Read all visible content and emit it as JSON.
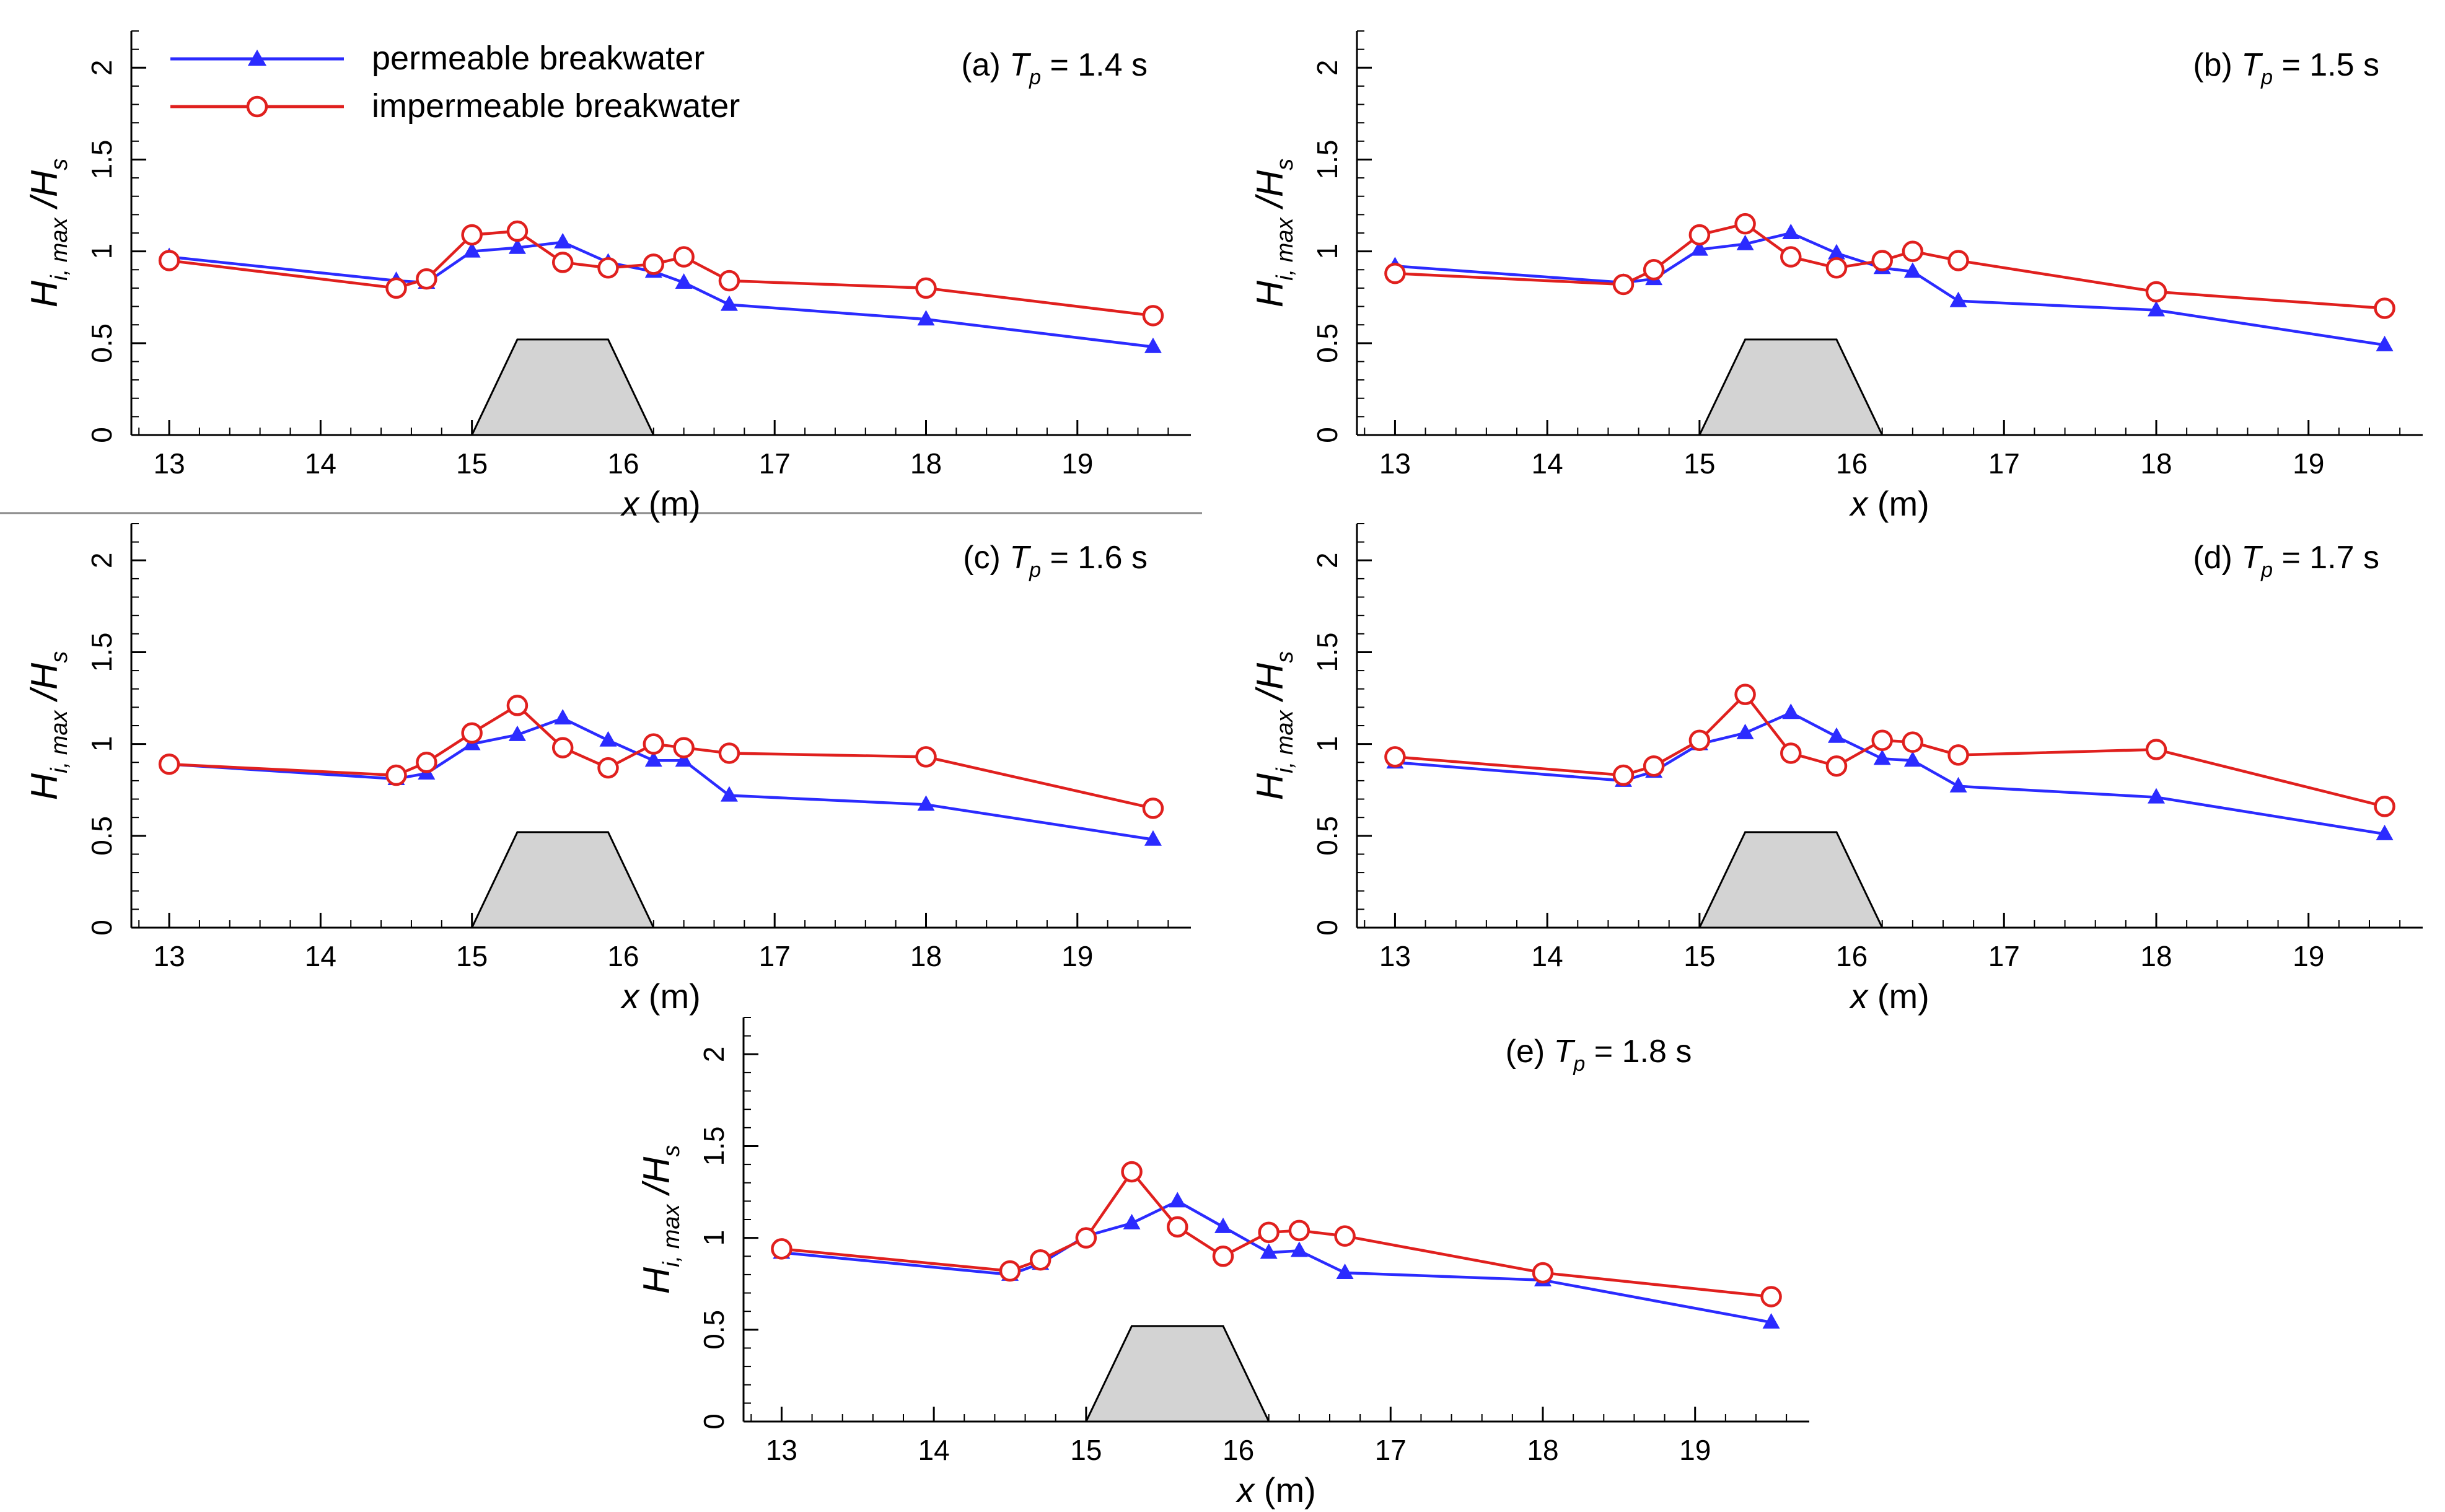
{
  "colors": {
    "permeable": "#2b2bff",
    "impermeable": "#e0201e",
    "breakwater_fill": "#d3d3d3",
    "axis": "#000000"
  },
  "legend": {
    "permeable_label": "permeable breakwater",
    "impermeable_label": "impermeable breakwater"
  },
  "chart_data": [
    {
      "type": "line",
      "panel_label": "(a)",
      "title_var": "T",
      "title_sub": "p",
      "title_value": " = 1.4 s",
      "xlabel": "x",
      "xlabel_unit": " (m)",
      "ylabel_main": "H",
      "ylabel_sub": "i, max",
      "ylabel_den": "/H",
      "ylabel_den_sub": "s",
      "xlim": [
        12.75,
        19.75
      ],
      "ylim": [
        0,
        2.2
      ],
      "xticks": [
        "13",
        "14",
        "15",
        "16",
        "17",
        "18",
        "19"
      ],
      "yticks": [
        "0",
        "0.5",
        "1",
        "1.5",
        "2"
      ],
      "breakwater": {
        "toe_left": 15.0,
        "crest_left": 15.3,
        "crest_right": 15.9,
        "toe_right": 16.2,
        "height": 0.52
      },
      "series": [
        {
          "name": "permeable breakwater",
          "marker": "triangle",
          "x": [
            13,
            14.5,
            14.7,
            15,
            15.3,
            15.6,
            15.9,
            16.2,
            16.4,
            16.7,
            18,
            19.5
          ],
          "values": [
            0.97,
            0.84,
            0.83,
            1.0,
            1.02,
            1.05,
            0.94,
            0.89,
            0.83,
            0.71,
            0.63,
            0.48
          ]
        },
        {
          "name": "impermeable breakwater",
          "marker": "circle",
          "x": [
            13,
            14.5,
            14.7,
            15,
            15.3,
            15.6,
            15.9,
            16.2,
            16.4,
            16.7,
            18,
            19.5
          ],
          "values": [
            0.95,
            0.8,
            0.85,
            1.09,
            1.11,
            0.94,
            0.91,
            0.93,
            0.97,
            0.84,
            0.8,
            0.65
          ]
        }
      ]
    },
    {
      "type": "line",
      "panel_label": "(b)",
      "title_var": "T",
      "title_sub": "p",
      "title_value": " = 1.5 s",
      "xlabel": "x",
      "xlabel_unit": " (m)",
      "ylabel_main": "H",
      "ylabel_sub": "i, max",
      "ylabel_den": "/H",
      "ylabel_den_sub": "s",
      "xlim": [
        12.75,
        19.75
      ],
      "ylim": [
        0,
        2.2
      ],
      "xticks": [
        "13",
        "14",
        "15",
        "16",
        "17",
        "18",
        "19"
      ],
      "yticks": [
        "0",
        "0.5",
        "1",
        "1.5",
        "2"
      ],
      "breakwater": {
        "toe_left": 15.0,
        "crest_left": 15.3,
        "crest_right": 15.9,
        "toe_right": 16.2,
        "height": 0.52
      },
      "series": [
        {
          "name": "permeable breakwater",
          "marker": "triangle",
          "x": [
            13,
            14.5,
            14.7,
            15,
            15.3,
            15.6,
            15.9,
            16.2,
            16.4,
            16.7,
            18,
            19.5
          ],
          "values": [
            0.92,
            0.83,
            0.85,
            1.01,
            1.04,
            1.1,
            0.99,
            0.91,
            0.89,
            0.73,
            0.68,
            0.49
          ]
        },
        {
          "name": "impermeable breakwater",
          "marker": "circle",
          "x": [
            13,
            14.5,
            14.7,
            15,
            15.3,
            15.6,
            15.9,
            16.2,
            16.4,
            16.7,
            18,
            19.5
          ],
          "values": [
            0.88,
            0.82,
            0.9,
            1.09,
            1.15,
            0.97,
            0.91,
            0.95,
            1.0,
            0.95,
            0.78,
            0.69
          ]
        }
      ]
    },
    {
      "type": "line",
      "panel_label": "(c)",
      "title_var": "T",
      "title_sub": "p",
      "title_value": " = 1.6 s",
      "xlabel": "x",
      "xlabel_unit": " (m)",
      "ylabel_main": "H",
      "ylabel_sub": "i, max",
      "ylabel_den": "/H",
      "ylabel_den_sub": "s",
      "xlim": [
        12.75,
        19.75
      ],
      "ylim": [
        0,
        2.2
      ],
      "xticks": [
        "13",
        "14",
        "15",
        "16",
        "17",
        "18",
        "19"
      ],
      "yticks": [
        "0",
        "0.5",
        "1",
        "1.5",
        "2"
      ],
      "breakwater": {
        "toe_left": 15.0,
        "crest_left": 15.3,
        "crest_right": 15.9,
        "toe_right": 16.2,
        "height": 0.52
      },
      "series": [
        {
          "name": "permeable breakwater",
          "marker": "triangle",
          "x": [
            13,
            14.5,
            14.7,
            15,
            15.3,
            15.6,
            15.9,
            16.2,
            16.4,
            16.7,
            18,
            19.5
          ],
          "values": [
            0.89,
            0.81,
            0.84,
            1.0,
            1.05,
            1.14,
            1.02,
            0.91,
            0.91,
            0.72,
            0.67,
            0.48
          ]
        },
        {
          "name": "impermeable breakwater",
          "marker": "circle",
          "x": [
            13,
            14.5,
            14.7,
            15,
            15.3,
            15.6,
            15.9,
            16.2,
            16.4,
            16.7,
            18,
            19.5
          ],
          "values": [
            0.89,
            0.83,
            0.9,
            1.06,
            1.21,
            0.98,
            0.87,
            1.0,
            0.98,
            0.95,
            0.93,
            0.65
          ]
        }
      ]
    },
    {
      "type": "line",
      "panel_label": "(d)",
      "title_var": "T",
      "title_sub": "p",
      "title_value": " = 1.7 s",
      "xlabel": "x",
      "xlabel_unit": " (m)",
      "ylabel_main": "H",
      "ylabel_sub": "i, max",
      "ylabel_den": "/H",
      "ylabel_den_sub": "s",
      "xlim": [
        12.75,
        19.75
      ],
      "ylim": [
        0,
        2.2
      ],
      "xticks": [
        "13",
        "14",
        "15",
        "16",
        "17",
        "18",
        "19"
      ],
      "yticks": [
        "0",
        "0.5",
        "1",
        "1.5",
        "2"
      ],
      "breakwater": {
        "toe_left": 15.0,
        "crest_left": 15.3,
        "crest_right": 15.9,
        "toe_right": 16.2,
        "height": 0.52
      },
      "series": [
        {
          "name": "permeable breakwater",
          "marker": "triangle",
          "x": [
            13,
            14.5,
            14.7,
            15,
            15.3,
            15.6,
            15.9,
            16.2,
            16.4,
            16.7,
            18,
            19.5
          ],
          "values": [
            0.9,
            0.8,
            0.85,
            1.0,
            1.06,
            1.17,
            1.04,
            0.92,
            0.91,
            0.77,
            0.71,
            0.51
          ]
        },
        {
          "name": "impermeable breakwater",
          "marker": "circle",
          "x": [
            13,
            14.5,
            14.7,
            15,
            15.3,
            15.6,
            15.9,
            16.2,
            16.4,
            16.7,
            18,
            19.5
          ],
          "values": [
            0.93,
            0.83,
            0.88,
            1.02,
            1.27,
            0.95,
            0.88,
            1.02,
            1.01,
            0.94,
            0.97,
            0.66
          ]
        }
      ]
    },
    {
      "type": "line",
      "panel_label": "(e)",
      "title_var": "T",
      "title_sub": "p",
      "title_value": " = 1.8 s",
      "xlabel": "x",
      "xlabel_unit": " (m)",
      "ylabel_main": "H",
      "ylabel_sub": "i, max",
      "ylabel_den": "/H",
      "ylabel_den_sub": "s",
      "xlim": [
        12.75,
        19.75
      ],
      "ylim": [
        0,
        2.2
      ],
      "xticks": [
        "13",
        "14",
        "15",
        "16",
        "17",
        "18",
        "19"
      ],
      "yticks": [
        "0",
        "0.5",
        "1",
        "1.5",
        "2"
      ],
      "breakwater": {
        "toe_left": 15.0,
        "crest_left": 15.3,
        "crest_right": 15.9,
        "toe_right": 16.2,
        "height": 0.52
      },
      "series": [
        {
          "name": "permeable breakwater",
          "marker": "triangle",
          "x": [
            13,
            14.5,
            14.7,
            15,
            15.3,
            15.6,
            15.9,
            16.2,
            16.4,
            16.7,
            18,
            19.5
          ],
          "values": [
            0.92,
            0.8,
            0.86,
            1.01,
            1.08,
            1.2,
            1.06,
            0.92,
            0.93,
            0.81,
            0.77,
            0.54
          ]
        },
        {
          "name": "impermeable breakwater",
          "marker": "circle",
          "x": [
            13,
            14.5,
            14.7,
            15,
            15.3,
            15.6,
            15.9,
            16.2,
            16.4,
            16.7,
            18,
            19.5
          ],
          "values": [
            0.94,
            0.82,
            0.88,
            1.0,
            1.36,
            1.06,
            0.9,
            1.03,
            1.04,
            1.01,
            0.81,
            0.68
          ]
        }
      ]
    }
  ]
}
